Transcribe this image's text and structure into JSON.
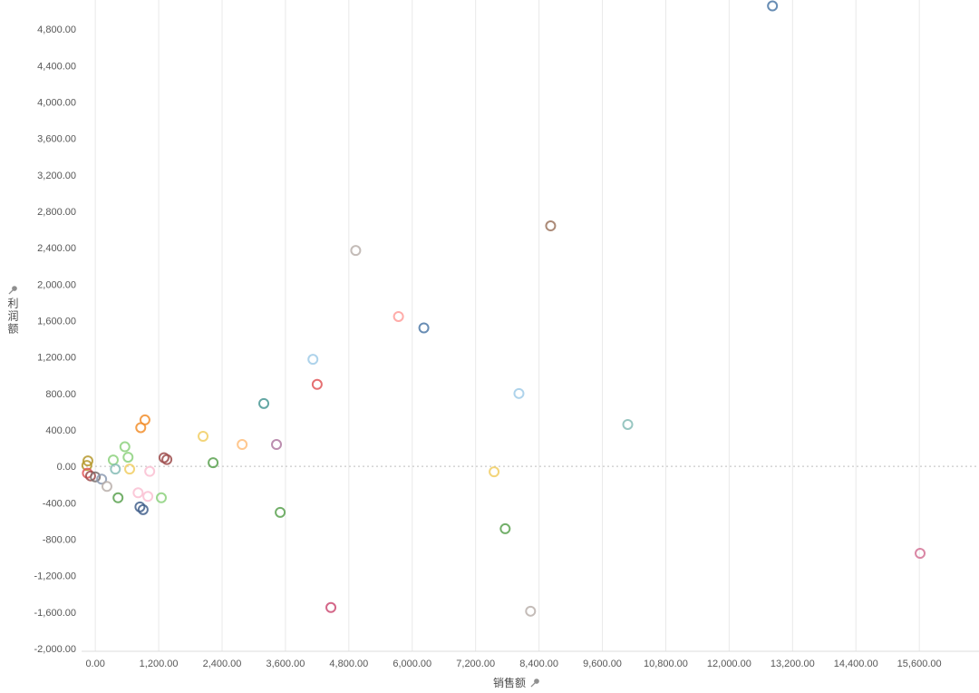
{
  "chart_data": {
    "type": "scatter",
    "title": "",
    "xlabel": "销售额",
    "ylabel": "利润额",
    "xlim": [
      -260,
      16730
    ],
    "ylim": [
      -2030,
      5120
    ],
    "grid": {
      "vertical": true,
      "horizontal": false,
      "zero_line_dotted": true
    },
    "style": {
      "grid_color": "#e9e9e9",
      "zero_line_color": "#bdbdbd",
      "axis_line_color": "#dcdcdc",
      "tick_color": "#575757",
      "point_radius": 5,
      "point_stroke_width": 2,
      "point_opacity": 0.85,
      "background": "#ffffff"
    },
    "x_ticks": [
      {
        "v": 0,
        "label": "0.00"
      },
      {
        "v": 1200,
        "label": "1,200.00"
      },
      {
        "v": 2400,
        "label": "2,400.00"
      },
      {
        "v": 3600,
        "label": "3,600.00"
      },
      {
        "v": 4800,
        "label": "4,800.00"
      },
      {
        "v": 6000,
        "label": "6,000.00"
      },
      {
        "v": 7200,
        "label": "7,200.00"
      },
      {
        "v": 8400,
        "label": "8,400.00"
      },
      {
        "v": 9600,
        "label": "9,600.00"
      },
      {
        "v": 10800,
        "label": "10,800.00"
      },
      {
        "v": 12000,
        "label": "12,000.00"
      },
      {
        "v": 13200,
        "label": "13,200.00"
      },
      {
        "v": 14400,
        "label": "14,400.00"
      },
      {
        "v": 15600,
        "label": "15,600.00"
      }
    ],
    "y_ticks": [
      {
        "v": 4800,
        "label": "4,800.00"
      },
      {
        "v": 4400,
        "label": "4,400.00"
      },
      {
        "v": 4000,
        "label": "4,000.00"
      },
      {
        "v": 3600,
        "label": "3,600.00"
      },
      {
        "v": 3200,
        "label": "3,200.00"
      },
      {
        "v": 2800,
        "label": "2,800.00"
      },
      {
        "v": 2400,
        "label": "2,400.00"
      },
      {
        "v": 2000,
        "label": "2,000.00"
      },
      {
        "v": 1600,
        "label": "1,600.00"
      },
      {
        "v": 1200,
        "label": "1,200.00"
      },
      {
        "v": 800,
        "label": "800.00"
      },
      {
        "v": 400,
        "label": "400.00"
      },
      {
        "v": 0,
        "label": "0.00"
      },
      {
        "v": -400,
        "label": "-400.00"
      },
      {
        "v": -800,
        "label": "-800.00"
      },
      {
        "v": -1200,
        "label": "-1,200.00"
      },
      {
        "v": -1600,
        "label": "-1,600.00"
      },
      {
        "v": -2000,
        "label": "-2,000.00"
      }
    ],
    "points": [
      {
        "x": 12820,
        "y": 5055,
        "color": "#4e79a7"
      },
      {
        "x": 8620,
        "y": 2640,
        "color": "#9c755f"
      },
      {
        "x": 4930,
        "y": 2370,
        "color": "#bab0ac"
      },
      {
        "x": 5740,
        "y": 1645,
        "color": "#ff9d9a"
      },
      {
        "x": 6220,
        "y": 1520,
        "color": "#4e79a7"
      },
      {
        "x": 4120,
        "y": 1175,
        "color": "#a0cbe8"
      },
      {
        "x": 4200,
        "y": 900,
        "color": "#e15759"
      },
      {
        "x": 8020,
        "y": 800,
        "color": "#a0cbe8"
      },
      {
        "x": 3190,
        "y": 690,
        "color": "#499894"
      },
      {
        "x": 10080,
        "y": 460,
        "color": "#86bcb6"
      },
      {
        "x": 940,
        "y": 510,
        "color": "#f28e2b"
      },
      {
        "x": 860,
        "y": 425,
        "color": "#f28e2b"
      },
      {
        "x": 2040,
        "y": 330,
        "color": "#f1ce63"
      },
      {
        "x": 2780,
        "y": 240,
        "color": "#ffbe7d"
      },
      {
        "x": 3430,
        "y": 240,
        "color": "#b07aa1"
      },
      {
        "x": 2230,
        "y": 40,
        "color": "#59a14f"
      },
      {
        "x": 3500,
        "y": -505,
        "color": "#59a14f"
      },
      {
        "x": 7550,
        "y": -60,
        "color": "#f1ce63"
      },
      {
        "x": 7760,
        "y": -685,
        "color": "#59a14f"
      },
      {
        "x": 15615,
        "y": -955,
        "color": "#d37295"
      },
      {
        "x": 4460,
        "y": -1550,
        "color": "#cc4c74"
      },
      {
        "x": 8240,
        "y": -1590,
        "color": "#bab0ac"
      },
      {
        "x": -140,
        "y": 60,
        "color": "#b6992d"
      },
      {
        "x": -160,
        "y": 10,
        "color": "#b6992d"
      },
      {
        "x": -150,
        "y": -75,
        "color": "#e15759"
      },
      {
        "x": -90,
        "y": -105,
        "color": "#9d4c4c"
      },
      {
        "x": 0,
        "y": -115,
        "color": "#79706e"
      },
      {
        "x": 120,
        "y": -140,
        "color": "#8b9ab1"
      },
      {
        "x": 220,
        "y": -220,
        "color": "#bab0ac"
      },
      {
        "x": 340,
        "y": 70,
        "color": "#8cd17d"
      },
      {
        "x": 380,
        "y": -30,
        "color": "#86bcb6"
      },
      {
        "x": 430,
        "y": -345,
        "color": "#59a14f"
      },
      {
        "x": 560,
        "y": 215,
        "color": "#8cd17d"
      },
      {
        "x": 620,
        "y": 100,
        "color": "#8cd17d"
      },
      {
        "x": 650,
        "y": -30,
        "color": "#f1ce63"
      },
      {
        "x": 810,
        "y": -290,
        "color": "#fabfd2"
      },
      {
        "x": 845,
        "y": -445,
        "color": "#43608c"
      },
      {
        "x": 905,
        "y": -475,
        "color": "#43608c"
      },
      {
        "x": 995,
        "y": -330,
        "color": "#fabfd2"
      },
      {
        "x": 1030,
        "y": -55,
        "color": "#fabfd2"
      },
      {
        "x": 1250,
        "y": -345,
        "color": "#8cd17d"
      },
      {
        "x": 1300,
        "y": 95,
        "color": "#9d4c4c"
      },
      {
        "x": 1355,
        "y": 75,
        "color": "#9d4c4c"
      }
    ]
  },
  "icons": {
    "axis_pin": "pushpin-icon",
    "pin_color": "#8f8f8f"
  }
}
